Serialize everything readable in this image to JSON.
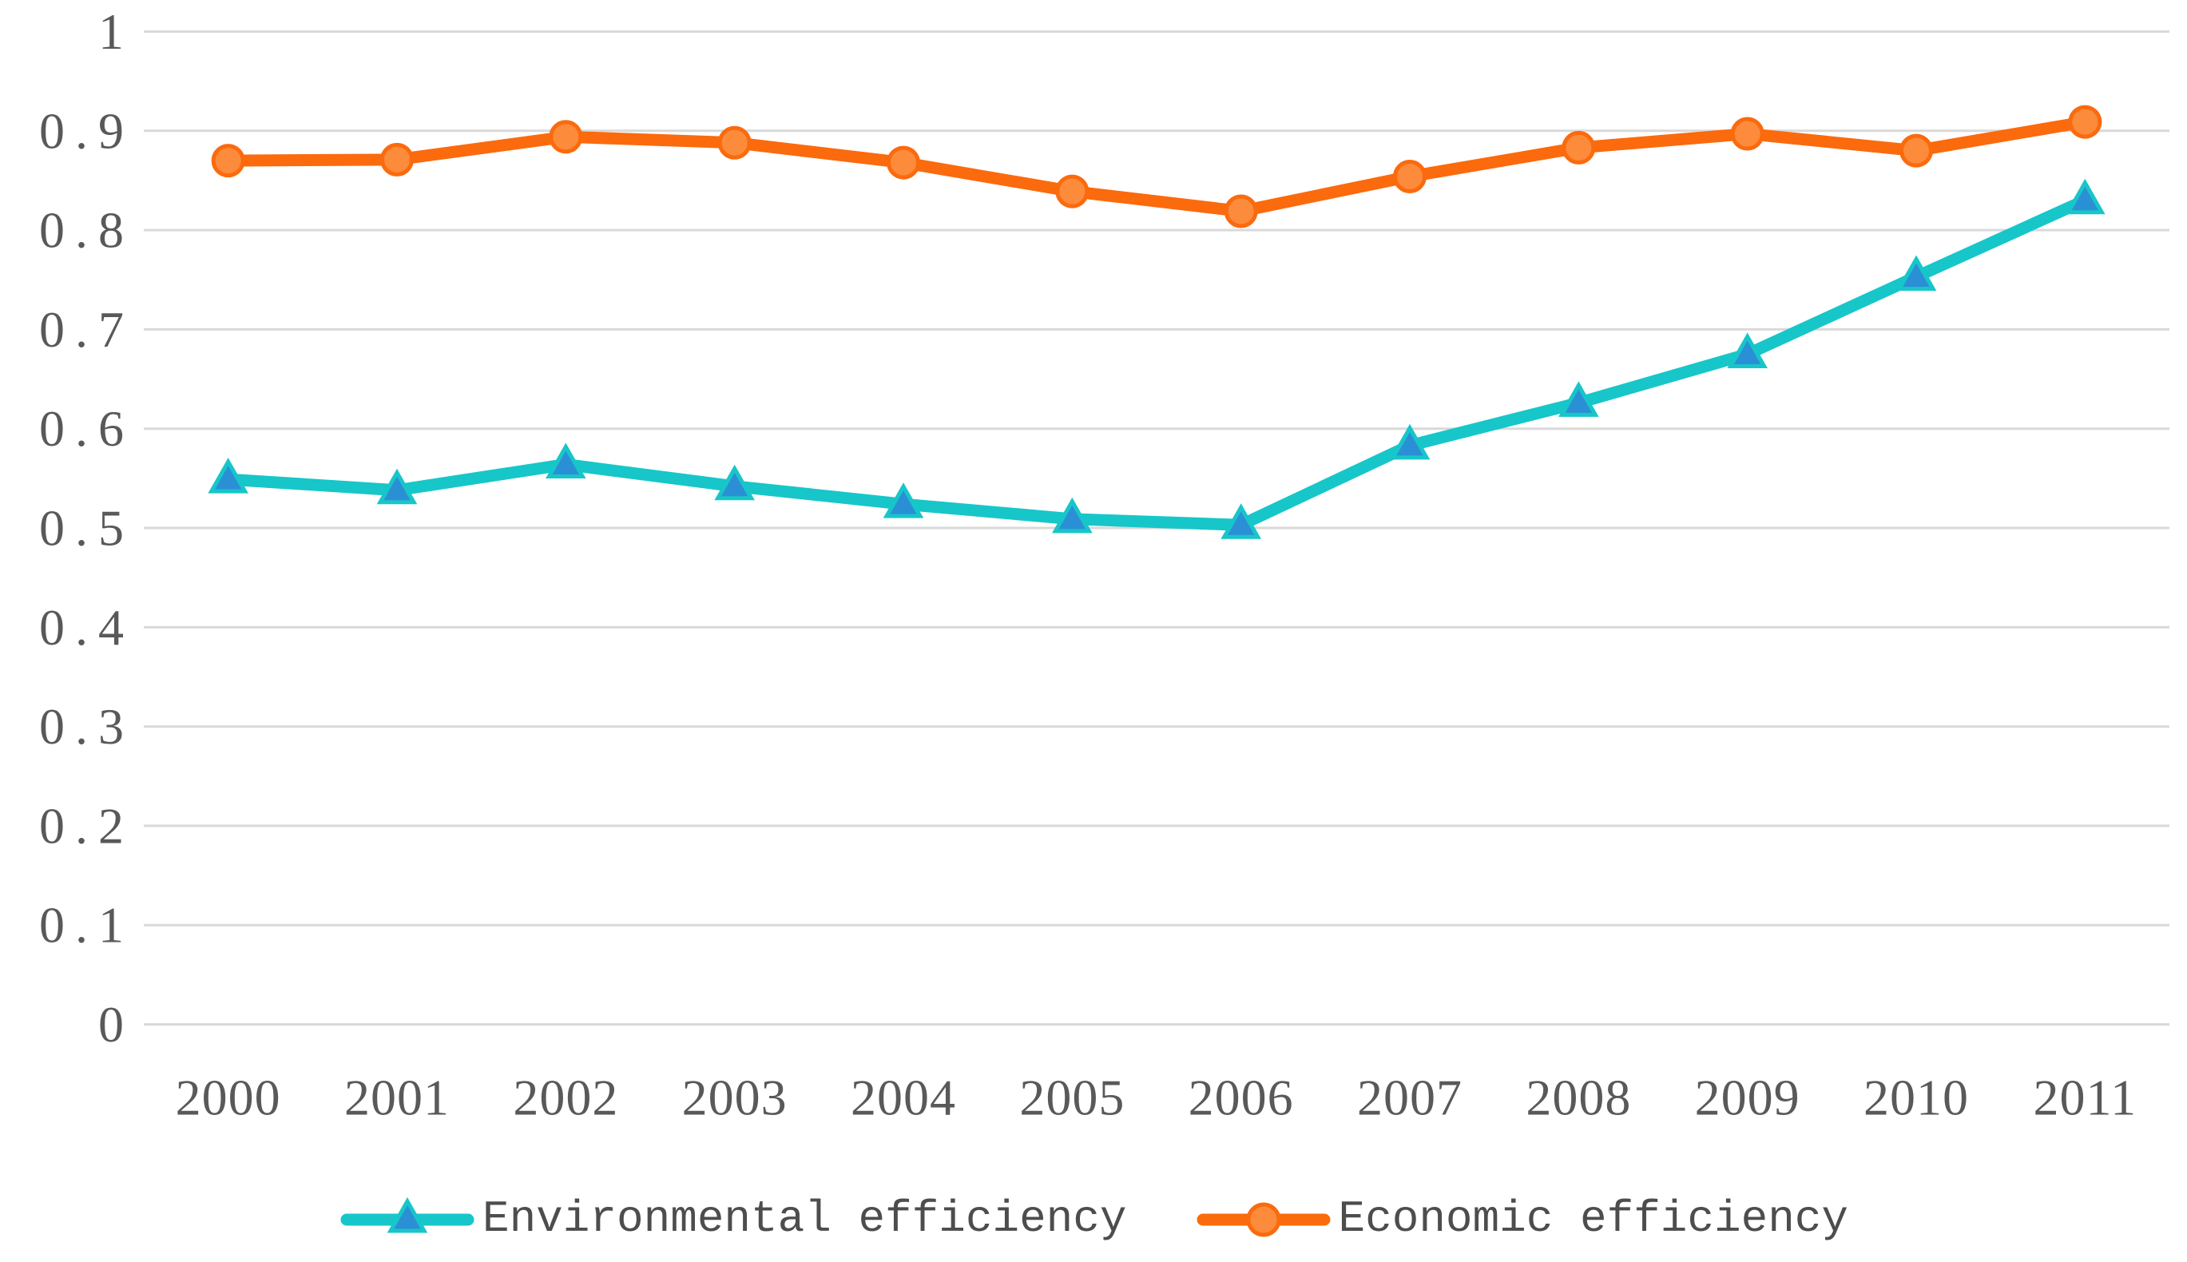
{
  "chart_data": {
    "type": "line",
    "title": "",
    "categories": [
      "2000",
      "2001",
      "2002",
      "2003",
      "2004",
      "2005",
      "2006",
      "2007",
      "2008",
      "2009",
      "2010",
      "2011"
    ],
    "series": [
      {
        "name": "Environmental efficiency",
        "marker": "triangle",
        "line_color": "#17C6C9",
        "marker_fill": "#2B8FD6",
        "values": [
          0.549,
          0.538,
          0.564,
          0.542,
          0.524,
          0.509,
          0.503,
          0.583,
          0.626,
          0.675,
          0.753,
          0.83
        ]
      },
      {
        "name": "Economic efficiency",
        "marker": "circle",
        "line_color": "#FB6A0D",
        "marker_fill": "#FC8B3B",
        "values": [
          0.87,
          0.871,
          0.894,
          0.888,
          0.868,
          0.839,
          0.819,
          0.854,
          0.883,
          0.897,
          0.88,
          0.909
        ]
      }
    ],
    "xlabel": "",
    "ylabel": "",
    "ylim": [
      0,
      1
    ],
    "y_tick_step": 0.1,
    "y_tick_labels": [
      "0",
      "0.1",
      "0.2",
      "0.3",
      "0.4",
      "0.5",
      "0.6",
      "0.7",
      "0.8",
      "0.9",
      "1"
    ],
    "grid": {
      "horizontal": true,
      "color": "#D9D9D9"
    },
    "legend_position": "bottom",
    "styles": {
      "background": "#FFFFFF",
      "tick_text_color": "#595959",
      "legend_text_color": "#4D4D4D",
      "line_width": 15
    }
  }
}
